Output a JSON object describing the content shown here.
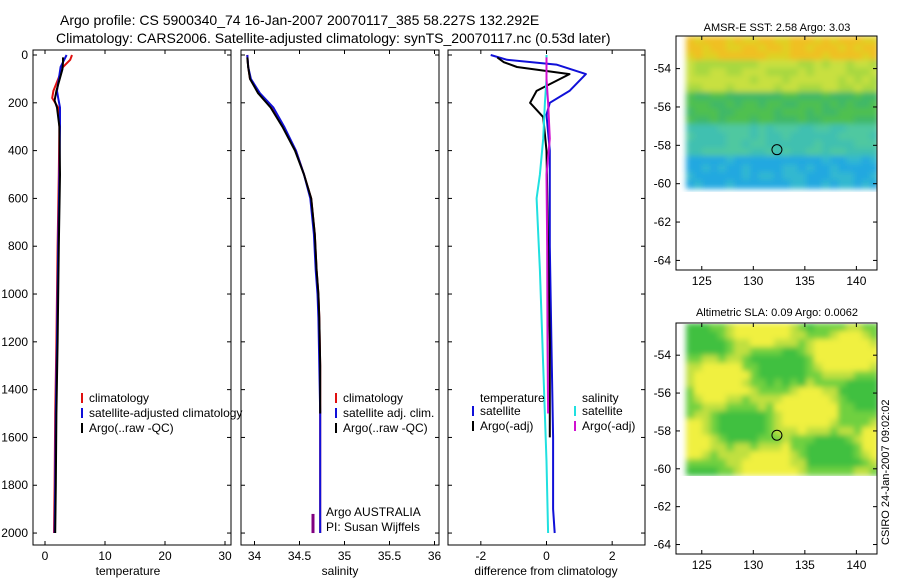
{
  "figure_title": {
    "line1": "Argo profile: CS 5900340_74 16-Jan-2007 20070117_385 58.227S 132.292E",
    "line2": "Climatology: CARS2006. Satellite-adjusted climatology: synTS_20070117.nc (0.53d later)"
  },
  "credit": "CSIRO 24-Jan-2007 09:02:02",
  "colors": {
    "climatology": "#e01010",
    "satellite": "#1010d8",
    "argo": "#000000",
    "salinity_satellite": "#20e0e0",
    "salinity_argo": "#d010d0",
    "pi_marker": "#800080",
    "float_marker": "#000000"
  },
  "chart_data": [
    {
      "type": "line",
      "id": "temperature",
      "xlabel": "temperature",
      "ylabel": "",
      "xlim": [
        -2,
        31
      ],
      "ylim": [
        2050,
        0
      ],
      "y_reversed": true,
      "xticks": [
        0,
        10,
        20,
        30
      ],
      "yticks": [
        0,
        200,
        400,
        600,
        800,
        1000,
        1200,
        1400,
        1600,
        1800,
        2000
      ],
      "legend_position": "lower-right",
      "legend": [
        {
          "label": "climatology",
          "color_key": "climatology"
        },
        {
          "label": "satellite-adjusted climatology",
          "color_key": "satellite"
        },
        {
          "label": "Argo(..raw -QC)",
          "color_key": "argo"
        }
      ],
      "series": [
        {
          "name": "climatology",
          "color_key": "climatology",
          "x": [
            4.5,
            4.2,
            3.0,
            1.4,
            1.2,
            2.2,
            2.4,
            2.3,
            2.1,
            1.9,
            1.7,
            1.6,
            1.5
          ],
          "y": [
            0,
            20,
            50,
            150,
            180,
            220,
            300,
            500,
            800,
            1200,
            1500,
            1800,
            2000
          ]
        },
        {
          "name": "satellite-adjusted climatology",
          "color_key": "satellite",
          "x": [
            3.6,
            3.2,
            2.6,
            2.0,
            2.2,
            2.5,
            2.5,
            2.4,
            2.2,
            2.0,
            1.8,
            1.7,
            1.6
          ],
          "y": [
            0,
            20,
            50,
            150,
            180,
            220,
            300,
            500,
            800,
            1200,
            1500,
            1800,
            2000
          ]
        },
        {
          "name": "Argo(..raw -QC)",
          "color_key": "argo",
          "x": [
            3.0,
            3.0,
            2.9,
            1.9,
            1.6,
            2.0,
            2.4,
            2.5,
            2.3,
            2.1,
            1.9,
            1.8,
            1.7
          ],
          "y": [
            10,
            30,
            60,
            150,
            190,
            220,
            300,
            500,
            800,
            1200,
            1500,
            1800,
            2000
          ]
        }
      ]
    },
    {
      "type": "line",
      "id": "salinity",
      "xlabel": "salinity",
      "ylabel": "",
      "xlim": [
        33.85,
        36.05
      ],
      "ylim": [
        2050,
        0
      ],
      "y_reversed": true,
      "xticks": [
        34,
        34.5,
        35,
        35.5,
        36
      ],
      "xticklabels": [
        "34",
        "34.5",
        "35",
        "35.5",
        "36"
      ],
      "legend_position": "lower-right",
      "legend": [
        {
          "label": "climatology",
          "color_key": "climatology"
        },
        {
          "label": "satellite adj. clim.",
          "color_key": "satellite"
        },
        {
          "label": "Argo(..raw -QC)",
          "color_key": "argo"
        }
      ],
      "annotation": {
        "line1": "Argo AUSTRALIA",
        "line2": "PI: Susan Wijffels",
        "x": 34.65,
        "y_top": 1920,
        "y_bottom": 2000
      },
      "series": [
        {
          "name": "climatology",
          "color_key": "climatology",
          "x": [
            33.92,
            33.93,
            33.95,
            34.05,
            34.2,
            34.32,
            34.46,
            34.55,
            34.63,
            34.67,
            34.69,
            34.71,
            34.72,
            34.73,
            34.73,
            34.73,
            34.73
          ],
          "y": [
            0,
            50,
            100,
            160,
            220,
            300,
            400,
            500,
            600,
            750,
            900,
            1000,
            1100,
            1300,
            1500,
            1800,
            2000
          ]
        },
        {
          "name": "satellite adj. clim.",
          "color_key": "satellite",
          "x": [
            33.92,
            33.93,
            33.96,
            34.06,
            34.21,
            34.33,
            34.46,
            34.55,
            34.62,
            34.66,
            34.68,
            34.7,
            34.71,
            34.72,
            34.73,
            34.73,
            34.73
          ],
          "y": [
            0,
            50,
            100,
            160,
            220,
            300,
            400,
            500,
            600,
            750,
            900,
            1000,
            1100,
            1300,
            1500,
            1800,
            2000
          ]
        },
        {
          "name": "Argo(..raw -QC)",
          "color_key": "argo",
          "x": [
            33.92,
            33.93,
            33.95,
            34.04,
            34.18,
            34.31,
            34.45,
            34.55,
            34.63,
            34.67,
            34.69,
            34.71,
            34.72,
            34.73,
            34.73
          ],
          "y": [
            10,
            50,
            100,
            160,
            220,
            300,
            400,
            500,
            600,
            750,
            900,
            1000,
            1100,
            1300,
            1500
          ]
        }
      ]
    },
    {
      "type": "line",
      "id": "difference",
      "xlabel": "difference from climatology",
      "ylabel": "",
      "xlim": [
        -3.0,
        3.0
      ],
      "ylim": [
        2050,
        0
      ],
      "y_reversed": true,
      "xticks": [
        -2,
        0,
        2
      ],
      "legend_position": "lower-center",
      "legend_headers": [
        "temperature",
        "salinity"
      ],
      "legend": [
        {
          "label": "satellite",
          "color_key": "satellite",
          "group": "temperature"
        },
        {
          "label": "Argo(-adj)",
          "color_key": "argo",
          "group": "temperature"
        },
        {
          "label": "satellite",
          "color_key": "salinity_satellite",
          "group": "salinity"
        },
        {
          "label": "Argo(-adj)",
          "color_key": "salinity_argo",
          "group": "salinity"
        }
      ],
      "series": [
        {
          "name": "temperature satellite",
          "color_key": "satellite",
          "x": [
            -1.7,
            -1.2,
            0.3,
            1.2,
            0.7,
            0.1,
            0.0,
            0.1,
            0.1,
            0.15,
            0.2,
            0.2,
            0.25
          ],
          "y": [
            0,
            20,
            40,
            80,
            150,
            200,
            250,
            400,
            800,
            1200,
            1600,
            1900,
            2000
          ]
        },
        {
          "name": "temperature Argo(-adj)",
          "color_key": "argo",
          "x": [
            -1.5,
            -1.3,
            -0.9,
            0.7,
            -0.3,
            -0.5,
            -0.1,
            0.0,
            0.05,
            0.1,
            0.1
          ],
          "y": [
            10,
            30,
            50,
            80,
            150,
            200,
            260,
            400,
            800,
            1200,
            1600
          ]
        },
        {
          "name": "salinity satellite",
          "color_key": "salinity_satellite",
          "x": [
            0.0,
            0.0,
            -0.05,
            -0.1,
            -0.2,
            -0.3,
            -0.2,
            -0.1,
            0.0,
            0.05
          ],
          "y": [
            0,
            100,
            200,
            350,
            500,
            600,
            900,
            1300,
            1700,
            2000
          ]
        },
        {
          "name": "salinity Argo(-adj)",
          "color_key": "salinity_argo",
          "x": [
            0.0,
            0.0,
            0.05,
            0.1,
            0.0,
            0.02,
            0.03,
            0.05
          ],
          "y": [
            10,
            100,
            200,
            350,
            500,
            800,
            1200,
            1500
          ]
        }
      ]
    },
    {
      "type": "heatmap",
      "id": "sst-map",
      "title": "AMSR-E SST: 2.58 Argo: 3.03",
      "xlim": [
        122.5,
        142
      ],
      "ylim": [
        -64.5,
        -52.3
      ],
      "xticks": [
        125,
        130,
        135,
        140
      ],
      "yticks": [
        -54,
        -56,
        -58,
        -60,
        -62,
        -64
      ],
      "data_extent_lat": [
        -52.3,
        -60
      ],
      "marker": {
        "lon": 132.292,
        "lat": -58.227
      }
    },
    {
      "type": "heatmap",
      "id": "sla-map",
      "title": "Altimetric SLA: 0.09 Argo: 0.0062",
      "xlim": [
        122.5,
        142
      ],
      "ylim": [
        -64.5,
        -52.3
      ],
      "xticks": [
        125,
        130,
        135,
        140
      ],
      "yticks": [
        -54,
        -56,
        -58,
        -60,
        -62,
        -64
      ],
      "data_extent_lat": [
        -52.3,
        -60
      ],
      "marker": {
        "lon": 132.292,
        "lat": -58.227
      }
    }
  ]
}
